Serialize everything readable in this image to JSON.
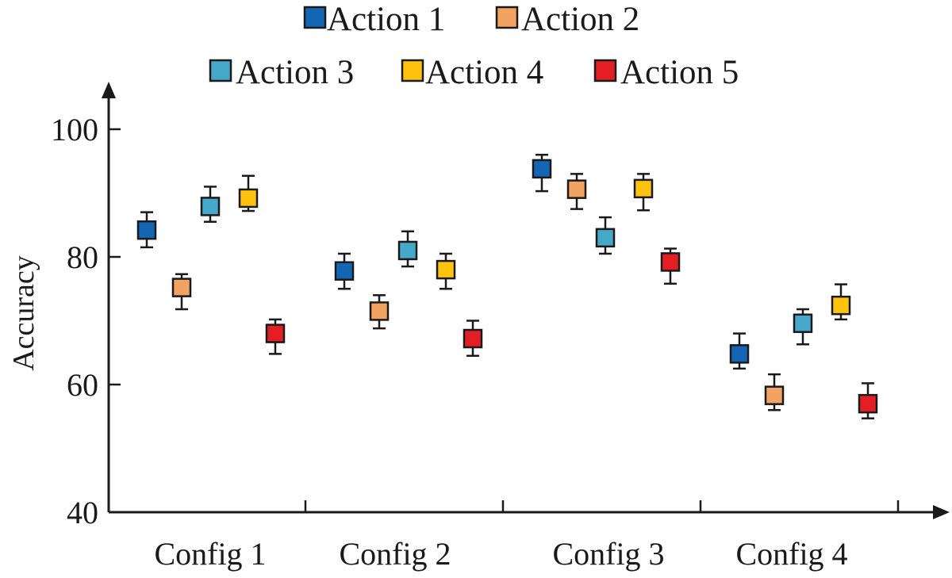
{
  "chart_data": {
    "type": "scatter",
    "title": "",
    "xlabel": "",
    "ylabel": "Accuracy",
    "ylim": [
      40,
      100
    ],
    "yticks": [
      "40",
      "60",
      "80",
      "100"
    ],
    "categories": [
      "Config 1",
      "Config 2",
      "Config 3",
      "Config 4"
    ],
    "legend_position": "top",
    "grid": false,
    "series": [
      {
        "name": "Action 1",
        "color": "#1565b5",
        "values": [
          84.2,
          77.8,
          93.8,
          64.8
        ],
        "lower": [
          81.5,
          75.0,
          90.3,
          62.5
        ],
        "upper": [
          87.0,
          80.5,
          96.0,
          68.0
        ]
      },
      {
        "name": "Action 2",
        "color": "#f2a261",
        "values": [
          75.2,
          71.5,
          90.6,
          58.3
        ],
        "lower": [
          71.8,
          68.8,
          87.5,
          56.0
        ],
        "upper": [
          77.3,
          74.0,
          93.0,
          61.6
        ]
      },
      {
        "name": "Action 3",
        "color": "#45a8c9",
        "values": [
          87.9,
          81.0,
          83.0,
          69.6
        ],
        "lower": [
          85.5,
          78.5,
          80.5,
          66.3
        ],
        "upper": [
          91.0,
          84.0,
          86.2,
          71.8
        ]
      },
      {
        "name": "Action 4",
        "color": "#ffc20e",
        "values": [
          89.2,
          78.0,
          90.7,
          72.4
        ],
        "lower": [
          87.2,
          75.0,
          87.3,
          70.2
        ],
        "upper": [
          92.7,
          80.5,
          93.0,
          75.7
        ]
      },
      {
        "name": "Action 5",
        "color": "#e31e25",
        "values": [
          68.0,
          67.2,
          79.2,
          57.0
        ],
        "lower": [
          64.8,
          64.5,
          75.8,
          54.7
        ],
        "upper": [
          70.2,
          70.0,
          81.3,
          60.2
        ]
      }
    ]
  }
}
